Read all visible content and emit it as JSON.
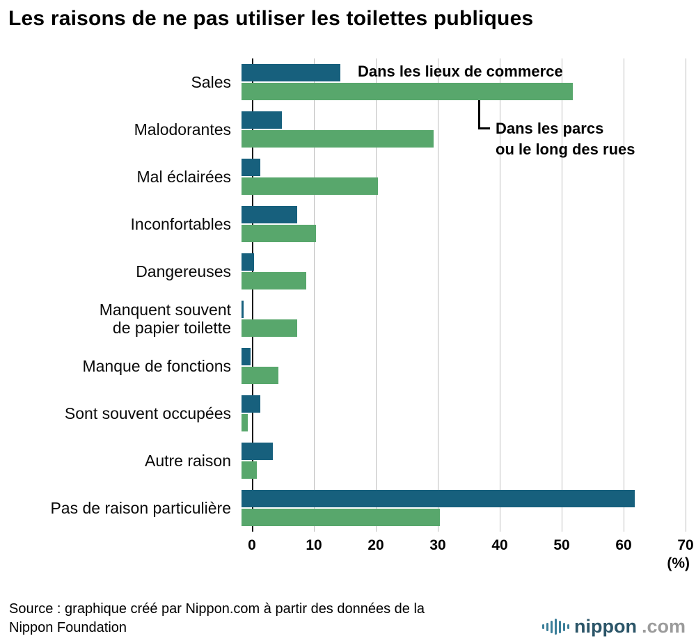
{
  "title": "Les raisons de ne pas utiliser les toilettes publiques",
  "chart_data": {
    "type": "bar",
    "orientation": "horizontal",
    "xlim": [
      0,
      70
    ],
    "xticks": [
      0,
      10,
      20,
      30,
      40,
      50,
      60,
      70
    ],
    "unit_label": "(%)",
    "grid": true,
    "categories": [
      "Sales",
      "Malodorantes",
      "Mal éclairées",
      "Inconfortables",
      "Dangereuses",
      "Manquent souvent\nde papier toilette",
      "Manque de fonctions",
      "Sont souvent occupées",
      "Autre raison",
      "Pas de raison particulière"
    ],
    "series": [
      {
        "name": "Dans les lieux de commerce",
        "color": "#17607D",
        "values": [
          16,
          6.5,
          3,
          9,
          2,
          0.3,
          1.5,
          3,
          5,
          63.5
        ]
      },
      {
        "name": "Dans les parcs ou le long des rues",
        "color": "#58A76C",
        "values": [
          53.5,
          31,
          22,
          12,
          10.5,
          9,
          6,
          1,
          2.5,
          32
        ]
      }
    ],
    "annotations": [
      {
        "text": "Dans les lieux de commerce",
        "series": 0
      },
      {
        "text": "Dans les parcs\nou le long des rues",
        "series": 1
      }
    ]
  },
  "source": "Source : graphique créé par Nippon.com à partir des données de la\nNippon Foundation",
  "logo": {
    "brand": "nippon",
    "suffix": ".com"
  }
}
